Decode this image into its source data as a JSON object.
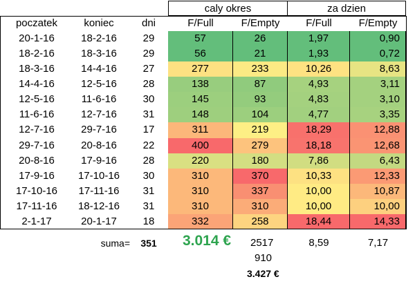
{
  "headers": {
    "group_total": "caly okres",
    "group_daily": "za dzien",
    "columns": [
      "poczatek",
      "koniec",
      "dni",
      "F/Full",
      "F/Empty",
      "F/Full",
      "F/Empty"
    ]
  },
  "rows": [
    {
      "start": "20-1-16",
      "end": "18-2-16",
      "days": "29",
      "full": "57",
      "empty": "26",
      "dfull": "1,97",
      "dempty": "0,90",
      "colors": [
        "#63be7b",
        "#63be7b",
        "#63be7b",
        "#63be7b"
      ]
    },
    {
      "start": "18-2-16",
      "end": "18-3-16",
      "days": "29",
      "full": "56",
      "empty": "21",
      "dfull": "1,93",
      "dempty": "0,72",
      "colors": [
        "#63be7b",
        "#63be7b",
        "#63be7b",
        "#63be7b"
      ]
    },
    {
      "start": "18-3-16",
      "end": "14-4-16",
      "days": "27",
      "full": "277",
      "empty": "233",
      "dfull": "10,26",
      "dempty": "8,63",
      "colors": [
        "#fde182",
        "#fbea84",
        "#fee282",
        "#e7e483"
      ]
    },
    {
      "start": "14-4-16",
      "end": "12-5-16",
      "days": "28",
      "full": "138",
      "empty": "87",
      "dfull": "4,93",
      "dempty": "3,11",
      "colors": [
        "#98cd7e",
        "#90cb7d",
        "#a6d27f",
        "#a4d17f"
      ]
    },
    {
      "start": "12-5-16",
      "end": "11-6-16",
      "days": "30",
      "full": "145",
      "empty": "93",
      "dfull": "4,83",
      "dempty": "3,10",
      "colors": [
        "#9ccf7e",
        "#94cc7d",
        "#a4d17f",
        "#a4d17f"
      ]
    },
    {
      "start": "11-6-16",
      "end": "12-7-16",
      "days": "31",
      "full": "148",
      "empty": "104",
      "dfull": "4,77",
      "dempty": "3,35",
      "colors": [
        "#9ecf7e",
        "#9ccf7e",
        "#a2d07f",
        "#a7d27f"
      ]
    },
    {
      "start": "12-7-16",
      "end": "29-7-16",
      "days": "17",
      "full": "311",
      "empty": "219",
      "dfull": "18,29",
      "dempty": "12,88",
      "colors": [
        "#fcb77a",
        "#fdef85",
        "#f8716c",
        "#fa9173"
      ]
    },
    {
      "start": "29-7-16",
      "end": "20-8-16",
      "days": "22",
      "full": "400",
      "empty": "279",
      "dfull": "18,18",
      "dempty": "12,68",
      "colors": [
        "#f8696b",
        "#fdc37d",
        "#f8736d",
        "#fa9473"
      ]
    },
    {
      "start": "20-8-16",
      "end": "17-9-16",
      "days": "28",
      "full": "220",
      "empty": "180",
      "dfull": "7,86",
      "dempty": "6,43",
      "colors": [
        "#d9e082",
        "#d3de82",
        "#d1dd81",
        "#c3d981"
      ]
    },
    {
      "start": "17-9-16",
      "end": "17-10-16",
      "days": "30",
      "full": "310",
      "empty": "370",
      "dfull": "10,33",
      "dempty": "12,33",
      "colors": [
        "#fcb87a",
        "#f8696b",
        "#fde182",
        "#fb9a74"
      ]
    },
    {
      "start": "17-10-16",
      "end": "17-11-16",
      "days": "31",
      "full": "310",
      "empty": "337",
      "dfull": "10,00",
      "dempty": "10,87",
      "colors": [
        "#fcb87a",
        "#f98f72",
        "#ffeb84",
        "#fcb87a"
      ]
    },
    {
      "start": "17-11-16",
      "end": "18-12-16",
      "days": "31",
      "full": "310",
      "empty": "310",
      "dfull": "10,00",
      "dempty": "10,00",
      "colors": [
        "#fcb87a",
        "#fbac78",
        "#ffeb84",
        "#fdd07f"
      ]
    },
    {
      "start": "2-1-17",
      "end": "20-1-17",
      "days": "18",
      "full": "332",
      "empty": "258",
      "dfull": "18,44",
      "dempty": "14,33",
      "colors": [
        "#fba477",
        "#fdd480",
        "#f8696b",
        "#f8696b"
      ]
    }
  ],
  "summary": {
    "label": "suma=",
    "days": "351",
    "total_eur": "3.014 €",
    "empty": "2517",
    "dfull": "8,59",
    "dempty": "7,17",
    "extra": "910",
    "grand_total": "3.427 €"
  }
}
